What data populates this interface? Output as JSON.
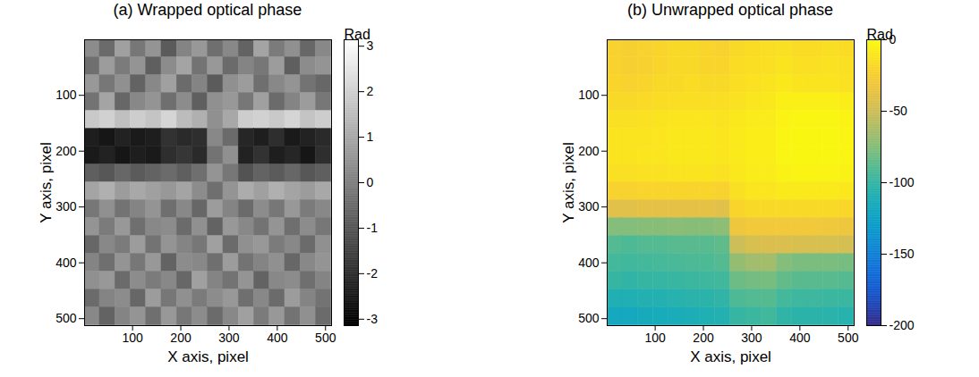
{
  "chart_data": [
    {
      "type": "heatmap",
      "title": "(a) Wrapped optical phase",
      "x_label": "X axis, pixel",
      "y_label": "Y axis, pixel",
      "x": [
        16,
        48,
        80,
        112,
        144,
        176,
        208,
        240,
        272,
        304,
        336,
        368,
        400,
        432,
        464,
        496
      ],
      "y": [
        16,
        48,
        80,
        112,
        144,
        176,
        208,
        240,
        272,
        304,
        336,
        368,
        400,
        432,
        464,
        496
      ],
      "cells": [
        [
          0.3,
          -0.5,
          0.8,
          -0.2,
          0.5,
          -0.9,
          0.1,
          0.6,
          -0.4,
          0.2,
          -0.7,
          0.9,
          -0.1,
          0.4,
          -0.6,
          0.2
        ],
        [
          -0.4,
          0.7,
          -0.1,
          0.5,
          -0.8,
          0.3,
          0.9,
          -0.3,
          0.6,
          -0.5,
          0.1,
          -0.2,
          0.7,
          -0.8,
          0.3,
          0.5
        ],
        [
          0.6,
          -0.2,
          0.4,
          -0.7,
          0.2,
          0.8,
          -0.5,
          0.1,
          -0.9,
          0.4,
          0.7,
          -0.4,
          0.2,
          0.5,
          -0.3,
          -0.6
        ],
        [
          -0.3,
          0.9,
          -0.6,
          0.2,
          0.5,
          -0.4,
          0.3,
          -0.8,
          0.4,
          0.6,
          -0.2,
          0.8,
          -0.5,
          0.1,
          0.7,
          -0.2
        ],
        [
          1.8,
          2.0,
          1.6,
          1.9,
          1.7,
          2.1,
          1.5,
          1.2,
          0.4,
          1.0,
          1.9,
          2.0,
          1.8,
          2.1,
          1.7,
          1.9
        ],
        [
          -2.4,
          -2.6,
          -2.3,
          -2.5,
          -2.4,
          -1.9,
          -2.1,
          -2.0,
          0.2,
          -0.5,
          -2.2,
          -2.4,
          -2.0,
          -2.5,
          -2.3,
          -2.1
        ],
        [
          -2.5,
          -2.3,
          -2.6,
          -2.4,
          -2.5,
          -2.0,
          -1.8,
          -2.1,
          -0.3,
          0.4,
          -2.3,
          -1.9,
          -2.4,
          -2.2,
          -2.6,
          -2.0
        ],
        [
          -0.8,
          -1.0,
          -0.6,
          -0.9,
          -0.7,
          -0.5,
          -0.8,
          -0.4,
          0.5,
          -0.2,
          -1.1,
          -0.7,
          -0.9,
          -0.6,
          -1.0,
          -0.8
        ],
        [
          0.9,
          1.2,
          0.7,
          1.0,
          0.8,
          0.6,
          0.9,
          0.3,
          -0.4,
          0.5,
          1.1,
          0.8,
          1.2,
          0.9,
          0.7,
          1.0
        ],
        [
          -0.2,
          0.4,
          -0.3,
          0.1,
          0.5,
          -0.4,
          0.2,
          -0.6,
          0.7,
          0.1,
          -0.5,
          0.3,
          -0.2,
          0.6,
          -0.1,
          0.2
        ],
        [
          0.5,
          -0.1,
          0.6,
          -0.4,
          0.2,
          0.3,
          -0.5,
          0.4,
          -0.7,
          0.6,
          0.2,
          -0.3,
          0.5,
          -0.4,
          0.3,
          -0.2
        ],
        [
          -0.6,
          0.2,
          -0.1,
          0.7,
          -0.3,
          0.5,
          0.1,
          -0.2,
          0.8,
          -0.5,
          0.4,
          0.6,
          -0.1,
          0.2,
          -0.5,
          0.4
        ],
        [
          0.1,
          -0.4,
          0.5,
          -0.2,
          0.6,
          -0.7,
          0.3,
          0.2,
          -0.4,
          0.7,
          -0.3,
          0.1,
          0.4,
          -0.6,
          0.2,
          0.5
        ],
        [
          0.4,
          0.6,
          -0.5,
          0.3,
          -0.1,
          0.2,
          -0.6,
          0.8,
          0.1,
          -0.3,
          0.5,
          -0.7,
          0.2,
          0.3,
          -0.4,
          0.1
        ],
        [
          -0.5,
          0.1,
          0.3,
          -0.6,
          0.7,
          -0.2,
          0.4,
          -0.1,
          0.3,
          0.6,
          -0.4,
          0.2,
          -0.5,
          0.7,
          0.1,
          -0.3
        ],
        [
          0.2,
          -0.7,
          0.1,
          0.5,
          -0.4,
          0.6,
          -0.2,
          0.3,
          -0.5,
          0.2,
          0.8,
          -0.1,
          0.6,
          -0.3,
          0.4,
          -0.5
        ]
      ],
      "xlim": [
        0.5,
        512.5
      ],
      "ylim": [
        512.5,
        0.5
      ],
      "xticks": [
        100,
        200,
        300,
        400,
        500
      ],
      "yticks": [
        100,
        200,
        300,
        400,
        500
      ],
      "color": "gray",
      "colorbar_label": "Rad",
      "colorbar_lim": [
        -3.1416,
        3.1416
      ],
      "colorbar_ticks": [
        -3,
        -2,
        -1,
        0,
        1,
        2,
        3
      ]
    },
    {
      "type": "heatmap",
      "title": "(b) Unwrapped optical phase",
      "x_label": "X axis, pixel",
      "y_label": "Y axis, pixel",
      "x": [
        16,
        48,
        80,
        112,
        144,
        176,
        208,
        240,
        272,
        304,
        336,
        368,
        400,
        432,
        464,
        496
      ],
      "y": [
        16,
        48,
        80,
        112,
        144,
        176,
        208,
        240,
        272,
        304,
        336,
        368,
        400,
        432,
        464,
        496
      ],
      "cells": [
        [
          -22,
          -24,
          -22,
          -20,
          -18,
          -18,
          -20,
          -22,
          -18,
          -16,
          -15,
          -14,
          -16,
          -16,
          -15,
          -16
        ],
        [
          -22,
          -24,
          -23,
          -20,
          -18,
          -18,
          -20,
          -20,
          -16,
          -15,
          -14,
          -12,
          -14,
          -14,
          -13,
          -14
        ],
        [
          -20,
          -22,
          -20,
          -18,
          -18,
          -16,
          -18,
          -18,
          -15,
          -13,
          -12,
          -10,
          -12,
          -12,
          -12,
          -13
        ],
        [
          -18,
          -18,
          -17,
          -16,
          -15,
          -15,
          -15,
          -15,
          -13,
          -11,
          -10,
          -6,
          -6,
          -6,
          -6,
          -7
        ],
        [
          -14,
          -14,
          -13,
          -12,
          -11,
          -11,
          -11,
          -12,
          -10,
          -8,
          -8,
          -4,
          -3,
          -3,
          -3,
          -4
        ],
        [
          -12,
          -12,
          -12,
          -11,
          -10,
          -10,
          -10,
          -11,
          -9,
          -7,
          -7,
          -3,
          -2,
          -2,
          -2,
          -3
        ],
        [
          -12,
          -12,
          -11,
          -11,
          -10,
          -10,
          -10,
          -11,
          -9,
          -7,
          -7,
          -3,
          -2,
          -2,
          -2,
          -3
        ],
        [
          -14,
          -14,
          -13,
          -13,
          -12,
          -12,
          -12,
          -13,
          -10,
          -8,
          -8,
          -5,
          -4,
          -4,
          -4,
          -5
        ],
        [
          -22,
          -22,
          -21,
          -20,
          -20,
          -20,
          -20,
          -22,
          -14,
          -11,
          -11,
          -9,
          -9,
          -9,
          -9,
          -10
        ],
        [
          -40,
          -40,
          -38,
          -38,
          -38,
          -38,
          -38,
          -40,
          -20,
          -18,
          -18,
          -18,
          -18,
          -18,
          -18,
          -19
        ],
        [
          -75,
          -75,
          -74,
          -74,
          -73,
          -74,
          -74,
          -72,
          -32,
          -30,
          -30,
          -30,
          -30,
          -30,
          -31,
          -32
        ],
        [
          -90,
          -92,
          -90,
          -90,
          -88,
          -88,
          -88,
          -86,
          -50,
          -45,
          -44,
          -44,
          -45,
          -45,
          -45,
          -46
        ],
        [
          -95,
          -96,
          -95,
          -94,
          -93,
          -92,
          -92,
          -90,
          -70,
          -66,
          -65,
          -75,
          -78,
          -78,
          -78,
          -79
        ],
        [
          -100,
          -102,
          -100,
          -100,
          -99,
          -98,
          -97,
          -96,
          -82,
          -80,
          -79,
          -85,
          -88,
          -88,
          -88,
          -89
        ],
        [
          -110,
          -110,
          -108,
          -108,
          -106,
          -105,
          -104,
          -102,
          -92,
          -90,
          -89,
          -95,
          -97,
          -97,
          -98,
          -98
        ],
        [
          -118,
          -118,
          -116,
          -115,
          -114,
          -112,
          -110,
          -108,
          -100,
          -98,
          -96,
          -102,
          -104,
          -104,
          -105,
          -106
        ]
      ],
      "xlim": [
        0.5,
        512.5
      ],
      "ylim": [
        512.5,
        0.5
      ],
      "xticks": [
        100,
        200,
        300,
        400,
        500
      ],
      "yticks": [
        100,
        200,
        300,
        400,
        500
      ],
      "color": "parula",
      "colorbar_label": "Rad",
      "colorbar_lim": [
        -200,
        0
      ],
      "colorbar_ticks": [
        -200,
        -150,
        -100,
        -50,
        0
      ]
    }
  ]
}
